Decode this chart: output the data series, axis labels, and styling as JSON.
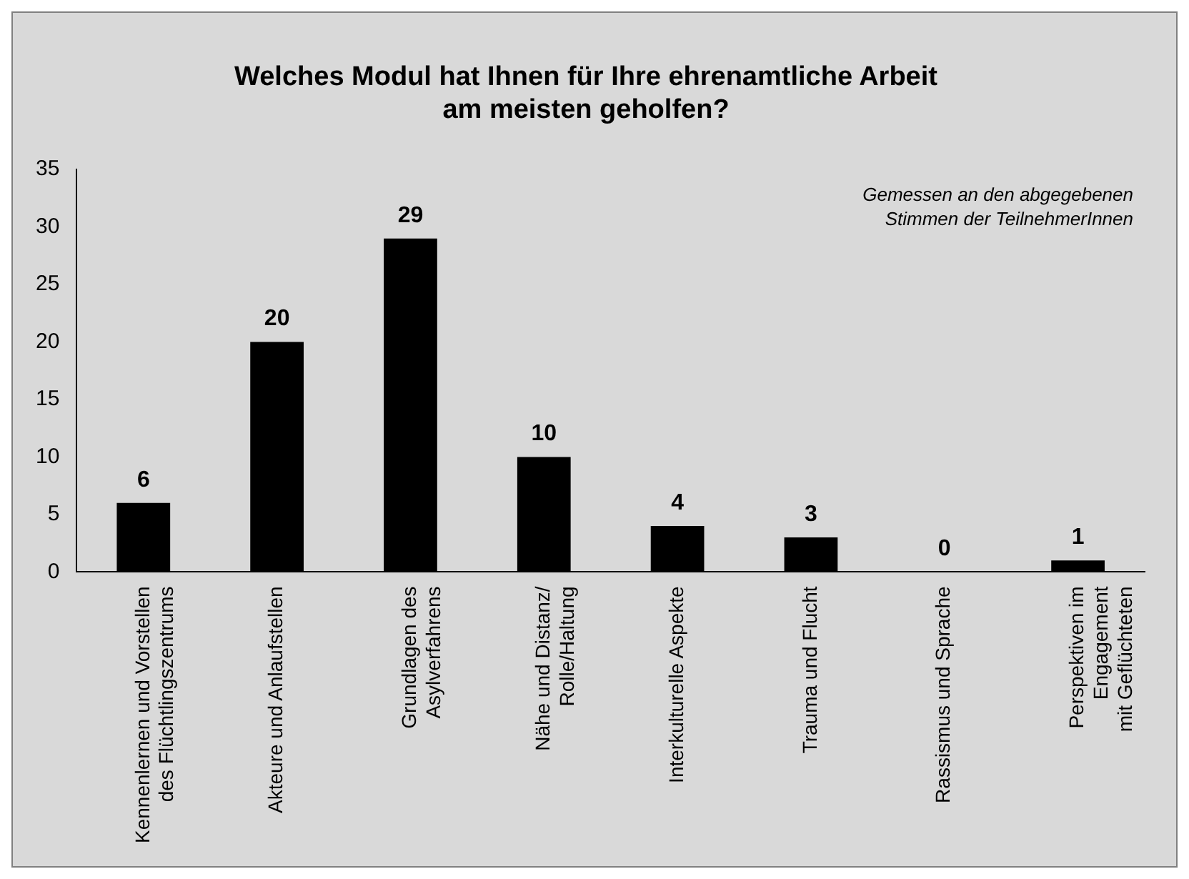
{
  "chart_data": {
    "type": "bar",
    "title": "Welches Modul hat Ihnen für Ihre ehrenamtliche Arbeit\nam meisten geholfen?",
    "categories": [
      "Kennenlernen und Vorstellen\ndes Flüchtlingszentrums",
      "Akteure und Anlaufstellen",
      "Grundlagen des\nAsylverfahrens",
      "Nähe und Distanz/\nRolle/Haltung",
      "Interkulturelle Aspekte",
      "Trauma und Flucht",
      "Rassismus und Sprache",
      "Perspektiven im\nEngagement\nmit Geflüchteten"
    ],
    "values": [
      6,
      20,
      29,
      10,
      4,
      3,
      0,
      1
    ],
    "color": "#000000",
    "ylim": [
      0,
      35
    ],
    "yticks": [
      0,
      5,
      10,
      15,
      20,
      25,
      30,
      35
    ],
    "grid": false,
    "legend": false,
    "data_labels": true,
    "annotations": [
      "Gemessen an den abgegebenen\nStimmen der TeilnehmerInnen"
    ]
  }
}
